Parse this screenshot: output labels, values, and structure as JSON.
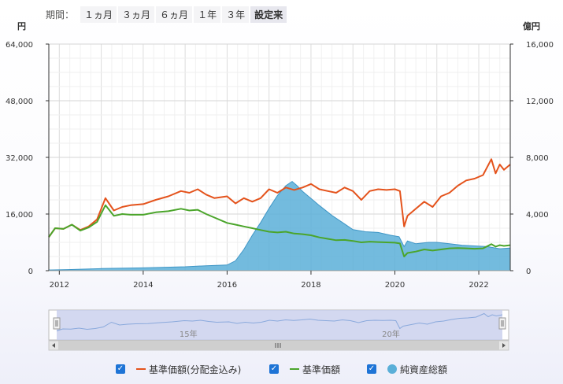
{
  "period": {
    "label": "期間：",
    "buttons": [
      "１ヵ月",
      "３ヵ月",
      "６ヵ月",
      "１年",
      "３年",
      "設定来"
    ],
    "active": "設定来"
  },
  "chart_data": {
    "type": "line",
    "left_axis": {
      "unit": "円",
      "ticks": [
        "0",
        "16,000",
        "32,000",
        "48,000",
        "64,000"
      ],
      "range": [
        0,
        64000
      ]
    },
    "right_axis": {
      "unit": "億円",
      "ticks": [
        "0",
        "4,000",
        "8,000",
        "12,000",
        "16,000"
      ],
      "range": [
        0,
        16000
      ]
    },
    "x_ticks": [
      "2012",
      "2014",
      "2016",
      "2018",
      "2020",
      "2022"
    ],
    "x_range": [
      2011.75,
      2022.75
    ],
    "grid": true,
    "series": [
      {
        "name": "基準価額(分配金込み)",
        "color": "#e4531c",
        "axis": "left",
        "x": [
          2011.75,
          2011.9,
          2012.1,
          2012.3,
          2012.5,
          2012.7,
          2012.9,
          2013.1,
          2013.3,
          2013.5,
          2013.7,
          2014.0,
          2014.3,
          2014.6,
          2014.9,
          2015.1,
          2015.3,
          2015.5,
          2015.7,
          2016.0,
          2016.2,
          2016.4,
          2016.6,
          2016.8,
          2017.0,
          2017.2,
          2017.4,
          2017.6,
          2017.8,
          2018.0,
          2018.2,
          2018.4,
          2018.6,
          2018.8,
          2019.0,
          2019.2,
          2019.4,
          2019.6,
          2019.8,
          2020.0,
          2020.12,
          2020.22,
          2020.3,
          2020.5,
          2020.7,
          2020.9,
          2021.1,
          2021.3,
          2021.5,
          2021.7,
          2021.9,
          2022.1,
          2022.3,
          2022.4,
          2022.5,
          2022.6,
          2022.75
        ],
        "values": [
          9500,
          12000,
          11800,
          13000,
          11500,
          12500,
          14500,
          20500,
          17000,
          18000,
          18500,
          18800,
          20000,
          21000,
          22500,
          22000,
          23000,
          21500,
          20500,
          21000,
          19000,
          20500,
          19500,
          20500,
          23000,
          22000,
          23500,
          22800,
          23500,
          24500,
          23000,
          22500,
          22000,
          23500,
          22500,
          20000,
          22500,
          23000,
          22800,
          23000,
          22500,
          12500,
          15500,
          17500,
          19500,
          18000,
          21000,
          22000,
          24000,
          25500,
          26000,
          27000,
          31500,
          27500,
          30000,
          28500,
          30000
        ]
      },
      {
        "name": "基準価額",
        "color": "#4ba52b",
        "axis": "left",
        "x": [
          2011.75,
          2011.9,
          2012.1,
          2012.3,
          2012.5,
          2012.7,
          2012.9,
          2013.1,
          2013.3,
          2013.5,
          2013.7,
          2014.0,
          2014.3,
          2014.6,
          2014.9,
          2015.1,
          2015.3,
          2015.5,
          2015.7,
          2016.0,
          2016.2,
          2016.4,
          2016.6,
          2016.8,
          2017.0,
          2017.2,
          2017.4,
          2017.6,
          2017.8,
          2018.0,
          2018.2,
          2018.4,
          2018.6,
          2018.8,
          2019.0,
          2019.2,
          2019.4,
          2019.6,
          2019.8,
          2020.0,
          2020.12,
          2020.22,
          2020.3,
          2020.5,
          2020.7,
          2020.9,
          2021.1,
          2021.3,
          2021.5,
          2021.7,
          2021.9,
          2022.1,
          2022.3,
          2022.4,
          2022.5,
          2022.6,
          2022.75
        ],
        "values": [
          9500,
          12000,
          11800,
          13000,
          11300,
          12200,
          13800,
          18500,
          15500,
          16000,
          15800,
          15800,
          16500,
          16800,
          17500,
          17000,
          17200,
          16000,
          15000,
          13500,
          13000,
          12500,
          12000,
          11500,
          11000,
          10800,
          11000,
          10500,
          10300,
          10000,
          9400,
          9000,
          8600,
          8700,
          8400,
          8000,
          8200,
          8100,
          8000,
          7900,
          7700,
          4000,
          5000,
          5400,
          6000,
          5700,
          6000,
          6300,
          6400,
          6300,
          6200,
          6300,
          7500,
          6800,
          7200,
          7000,
          7200
        ]
      },
      {
        "name": "純資産総額",
        "color": "#5aafd8",
        "axis": "right",
        "kind": "area",
        "x": [
          2011.75,
          2012.2,
          2013.0,
          2014.0,
          2015.0,
          2015.5,
          2016.0,
          2016.2,
          2016.4,
          2016.6,
          2016.8,
          2017.0,
          2017.2,
          2017.4,
          2017.55,
          2017.65,
          2017.8,
          2018.0,
          2018.2,
          2018.5,
          2018.8,
          2019.0,
          2019.3,
          2019.6,
          2019.9,
          2020.1,
          2020.22,
          2020.3,
          2020.5,
          2020.8,
          2021.0,
          2021.3,
          2021.6,
          2021.9,
          2022.2,
          2022.5,
          2022.75
        ],
        "values": [
          50,
          80,
          150,
          200,
          280,
          350,
          400,
          700,
          1500,
          2500,
          3400,
          4400,
          5300,
          6000,
          6300,
          6050,
          5600,
          5100,
          4600,
          3900,
          3300,
          2900,
          2750,
          2700,
          2500,
          2400,
          1700,
          2100,
          1900,
          2000,
          2000,
          1900,
          1800,
          1750,
          1700,
          1550,
          1600
        ]
      }
    ],
    "navigator": {
      "labels": [
        "15年",
        "20年"
      ]
    }
  },
  "legend": {
    "items": [
      "基準価額(分配金込み)",
      "基準価額",
      "純資産総額"
    ],
    "checkmark": "✓"
  }
}
